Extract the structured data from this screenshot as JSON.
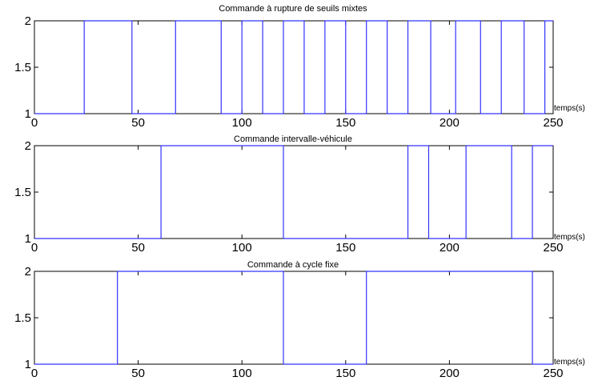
{
  "chart_data": [
    {
      "type": "line",
      "title": "Commande à rupture de seuils mixtes",
      "xlabel": "temps(s)",
      "ylabel": "",
      "xlim": [
        0,
        250
      ],
      "ylim": [
        1,
        2
      ],
      "xticks": [
        0,
        50,
        100,
        150,
        200,
        250
      ],
      "yticks": [
        1,
        1.5,
        2
      ],
      "grid": false,
      "series": [
        {
          "x": [
            0,
            24,
            24,
            47,
            47,
            68,
            68,
            90,
            90,
            100,
            100,
            110,
            110,
            120,
            120,
            130,
            130,
            140,
            140,
            150,
            150,
            160,
            160,
            170,
            170,
            180,
            180,
            191,
            191,
            203,
            203,
            215,
            215,
            225,
            225,
            236,
            236,
            246,
            246,
            250
          ],
          "y": [
            1,
            1,
            2,
            2,
            1,
            1,
            2,
            2,
            1,
            1,
            2,
            2,
            1,
            1,
            2,
            2,
            1,
            1,
            2,
            2,
            1,
            1,
            2,
            2,
            1,
            1,
            2,
            2,
            1,
            1,
            2,
            2,
            1,
            1,
            2,
            2,
            1,
            1,
            2,
            2
          ]
        }
      ]
    },
    {
      "type": "line",
      "title": "Commande intervalle-véhicule",
      "xlabel": "temps(s)",
      "ylabel": "",
      "xlim": [
        0,
        250
      ],
      "ylim": [
        1,
        2
      ],
      "xticks": [
        0,
        50,
        100,
        150,
        200,
        250
      ],
      "yticks": [
        1,
        1.5,
        2
      ],
      "grid": false,
      "series": [
        {
          "x": [
            0,
            61,
            61,
            120,
            120,
            180,
            180,
            190,
            190,
            208,
            208,
            230,
            230,
            240,
            240,
            250
          ],
          "y": [
            1,
            1,
            2,
            2,
            1,
            1,
            2,
            2,
            1,
            1,
            2,
            2,
            1,
            1,
            2,
            2
          ]
        }
      ]
    },
    {
      "type": "line",
      "title": "Commande à cycle fixe",
      "xlabel": "temps(s)",
      "ylabel": "",
      "xlim": [
        0,
        250
      ],
      "ylim": [
        1,
        2
      ],
      "xticks": [
        0,
        50,
        100,
        150,
        200,
        250
      ],
      "yticks": [
        1,
        1.5,
        2
      ],
      "grid": false,
      "series": [
        {
          "x": [
            0,
            40,
            40,
            120,
            120,
            160,
            160,
            240,
            240,
            250
          ],
          "y": [
            1,
            1,
            2,
            2,
            1,
            1,
            2,
            2,
            1,
            1
          ]
        }
      ]
    }
  ],
  "colors": {
    "line": "#3333ff",
    "axes": "#000000",
    "background": "#ffffff"
  }
}
